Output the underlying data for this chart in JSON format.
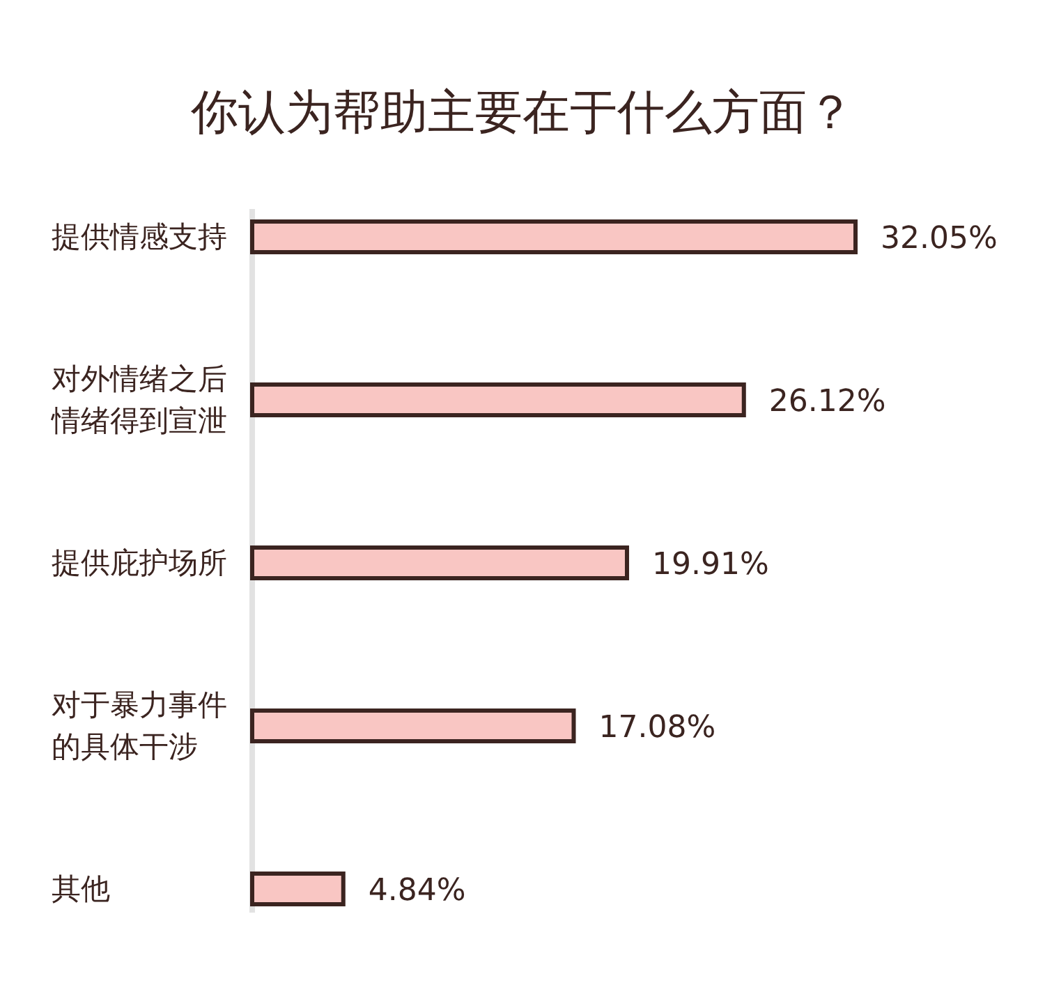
{
  "chart_data": {
    "type": "bar",
    "orientation": "horizontal",
    "title": "你认为帮助主要在于什么方面？",
    "categories": [
      "提供情感支持",
      "对外情绪之后情绪得到宣泄",
      "提供庇护场所",
      "对于暴力事件的具体干涉",
      "其他"
    ],
    "values": [
      32.05,
      26.12,
      19.91,
      17.08,
      4.84
    ],
    "value_labels": [
      "32.05%",
      "26.12%",
      "19.91%",
      "17.08%",
      "4.84%"
    ],
    "color": "#f9c6c3"
  }
}
